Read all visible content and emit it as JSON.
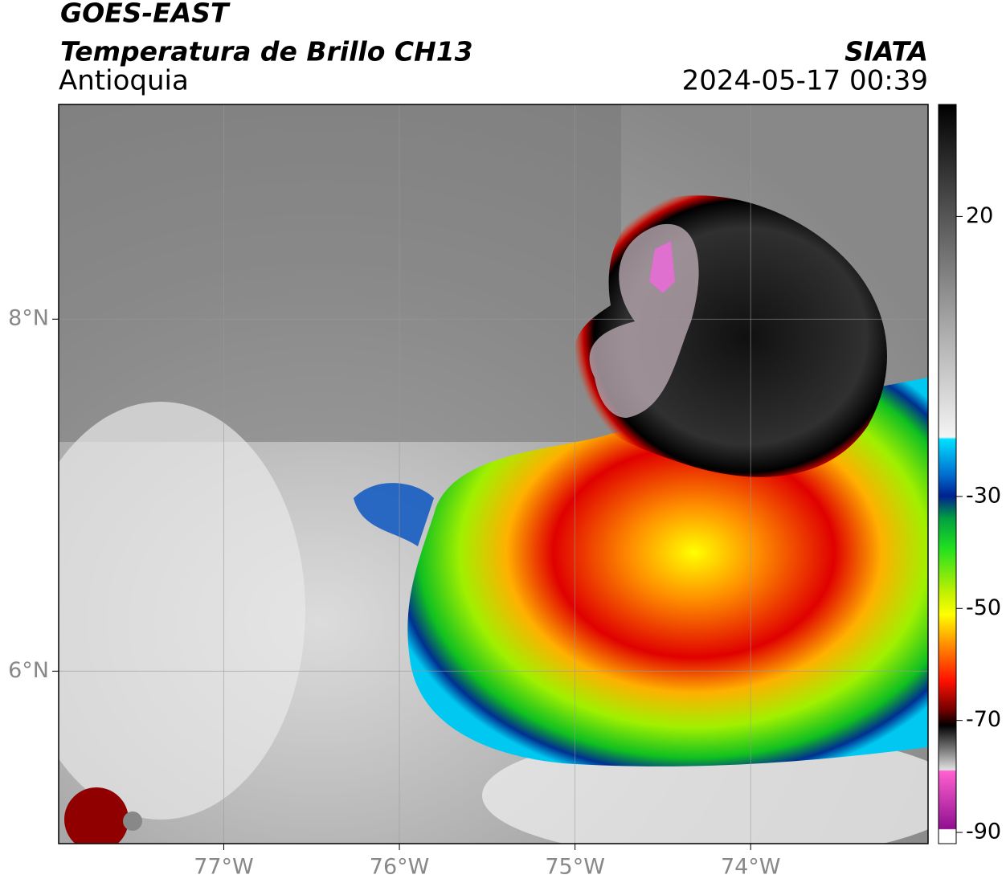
{
  "chart_data": {
    "type": "map",
    "title": "GOES-EAST",
    "subtitle": "Temperatura de Brillo CH13",
    "region": "Antioquia",
    "source": "SIATA",
    "datetime": "2024-05-17 00:39",
    "xlim": [
      -77.94,
      -72.99
    ],
    "ylim": [
      5.02,
      9.22
    ],
    "xticks": [
      {
        "value": -77,
        "label": "77°W"
      },
      {
        "value": -76,
        "label": "76°W"
      },
      {
        "value": -75,
        "label": "75°W"
      },
      {
        "value": -74,
        "label": "74°W"
      }
    ],
    "yticks": [
      {
        "value": 6,
        "label": "6°N"
      },
      {
        "value": 8,
        "label": "8°N"
      }
    ],
    "grid": true,
    "colorbar": {
      "clim": [
        -92,
        40
      ],
      "ticks": [
        20,
        -30,
        -50,
        -70,
        -90
      ]
    }
  }
}
